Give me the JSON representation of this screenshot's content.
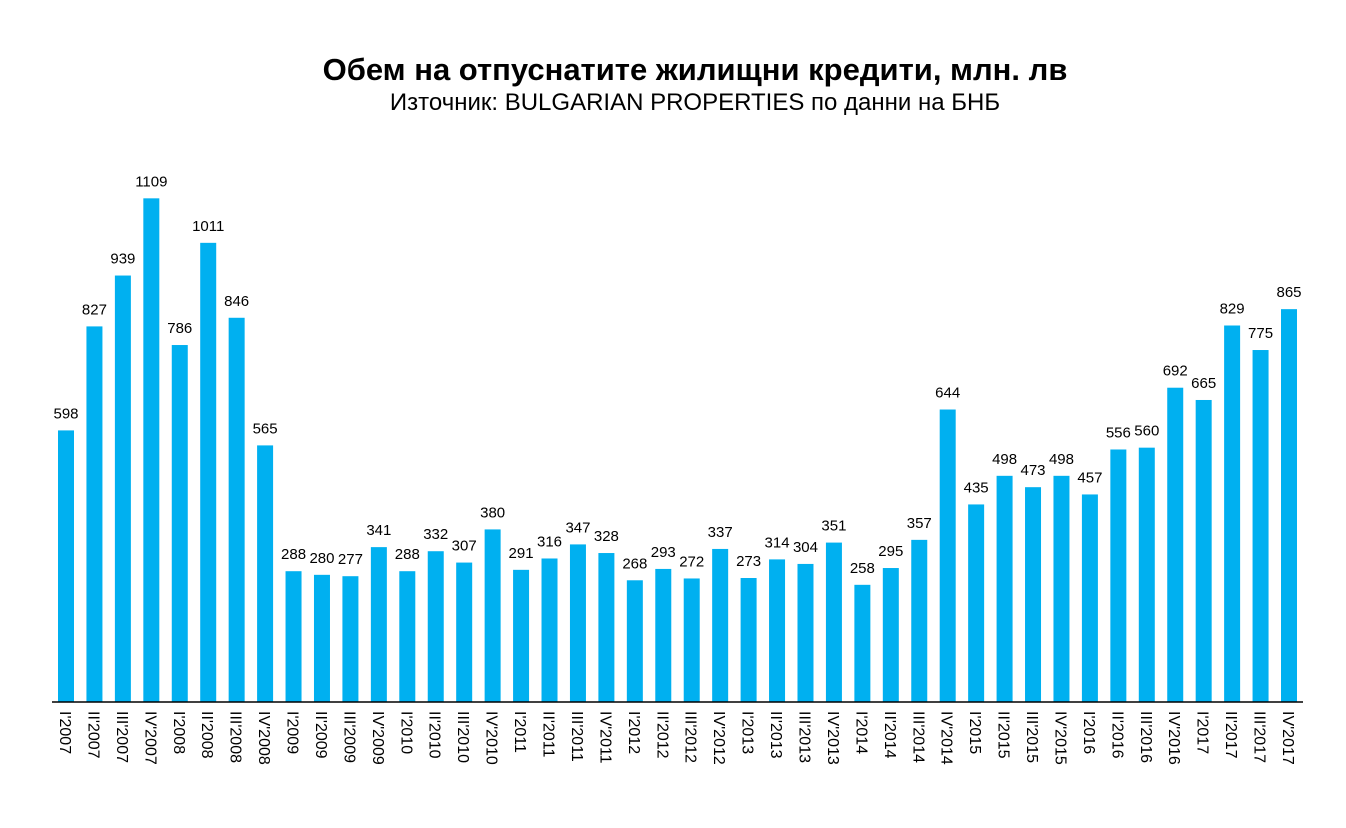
{
  "chart_data": {
    "type": "bar",
    "title": "Обем на отпуснатите жилищни кредити, млн. лв",
    "subtitle": "Източник: BULGARIAN PROPERTIES по данни на БНБ",
    "xlabel": "",
    "ylabel": "",
    "ylim": [
      0,
      1200
    ],
    "grid": false,
    "bar_color": "#00B0F0",
    "categories": [
      "I'2007",
      "II'2007",
      "III'2007",
      "IV'2007",
      "I'2008",
      "II'2008",
      "III'2008",
      "IV'2008",
      "I'2009",
      "II'2009",
      "III'2009",
      "IV'2009",
      "I'2010",
      "II'2010",
      "III'2010",
      "IV'2010",
      "I'2011",
      "II'2011",
      "III'2011",
      "IV'2011",
      "I'2012",
      "II'2012",
      "III'2012",
      "IV'2012",
      "I'2013",
      "II'2013",
      "III'2013",
      "IV'2013",
      "I'2014",
      "II'2014",
      "III'2014",
      "IV'2014",
      "I'2015",
      "II'2015",
      "III'2015",
      "IV'2015",
      "I'2016",
      "II'2016",
      "III'2016",
      "IV'2016",
      "I'2017",
      "II'2017",
      "III'2017",
      "IV'2017"
    ],
    "values": [
      598,
      827,
      939,
      1109,
      786,
      1011,
      846,
      565,
      288,
      280,
      277,
      341,
      288,
      332,
      307,
      380,
      291,
      316,
      347,
      328,
      268,
      293,
      272,
      337,
      273,
      314,
      304,
      351,
      258,
      295,
      357,
      644,
      435,
      498,
      473,
      498,
      457,
      556,
      560,
      692,
      665,
      829,
      775,
      865
    ]
  }
}
